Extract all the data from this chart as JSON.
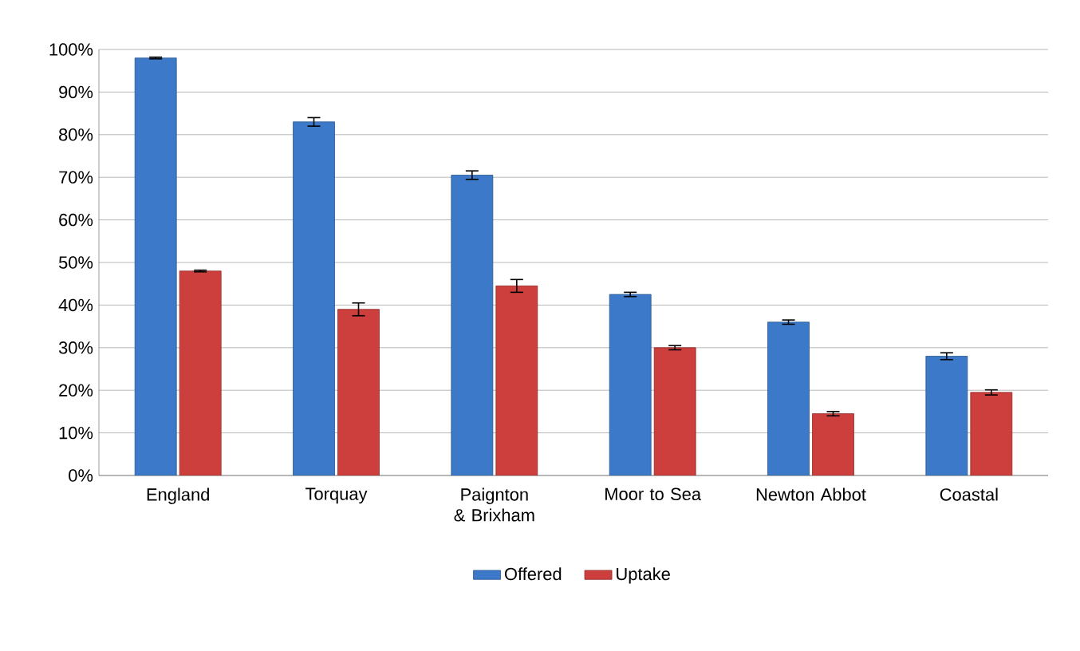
{
  "chart_data": {
    "type": "bar",
    "categories": [
      "England",
      "Torquay",
      "Paignton & Brixham",
      "Moor to Sea",
      "Newton Abbot",
      "Coastal"
    ],
    "series": [
      {
        "name": "Offered",
        "color": "#3c7ac9",
        "values": [
          98,
          83,
          70.5,
          42.5,
          36,
          28
        ],
        "errors": [
          0.2,
          1,
          1,
          0.5,
          0.5,
          0.8
        ]
      },
      {
        "name": "Uptake",
        "color": "#cc3f3c",
        "values": [
          48,
          39,
          44.5,
          30,
          14.5,
          19.5
        ],
        "errors": [
          0.2,
          1.5,
          1.5,
          0.5,
          0.5,
          0.6
        ]
      }
    ],
    "ylim": [
      0,
      100
    ],
    "yticks": [
      {
        "value": 0,
        "label": "0%"
      },
      {
        "value": 10,
        "label": "10%"
      },
      {
        "value": 20,
        "label": "20%"
      },
      {
        "value": 30,
        "label": "30%"
      },
      {
        "value": 40,
        "label": "40%"
      },
      {
        "value": 50,
        "label": "50%"
      },
      {
        "value": 60,
        "label": "60%"
      },
      {
        "value": 70,
        "label": "70%"
      },
      {
        "value": 80,
        "label": "80%"
      },
      {
        "value": 90,
        "label": "90%"
      },
      {
        "value": 100,
        "label": "100%"
      }
    ],
    "grid": "y",
    "legend": "bottom"
  }
}
